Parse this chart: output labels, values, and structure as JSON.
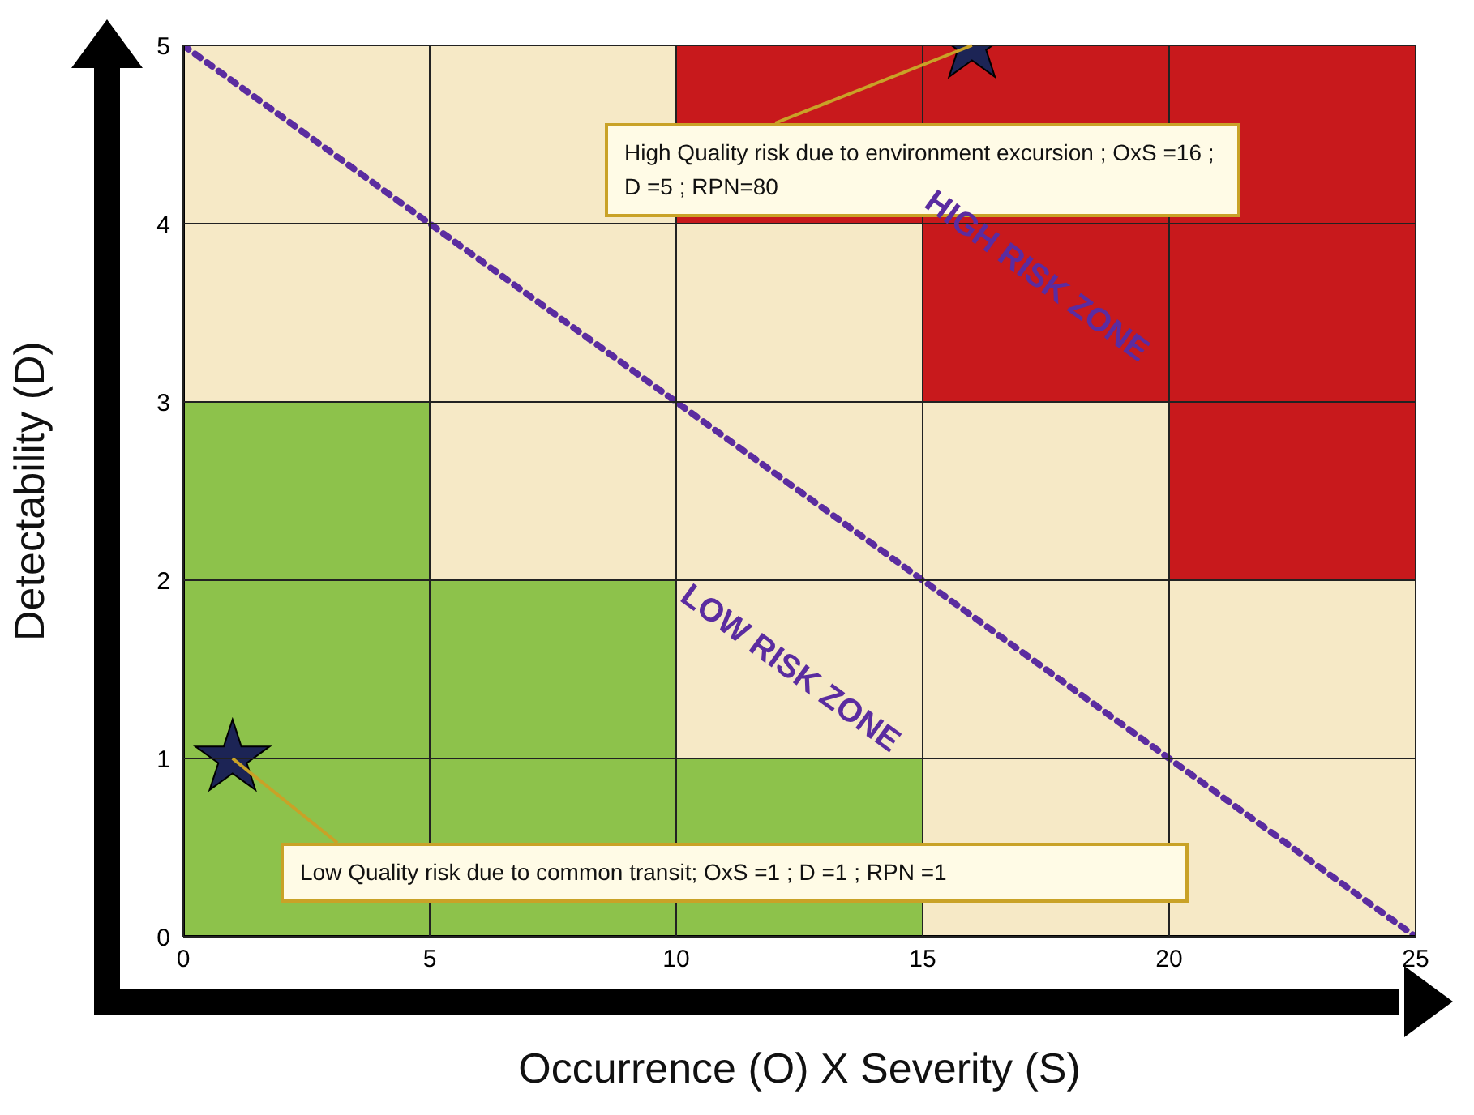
{
  "chart_data": {
    "type": "scatter",
    "xlabel": "Occurrence (O) X Severity (S)",
    "ylabel": "Detectability (D)",
    "xlim": [
      0,
      25
    ],
    "ylim": [
      0,
      5
    ],
    "xticks": [
      0,
      5,
      10,
      15,
      20,
      25
    ],
    "yticks": [
      0,
      1,
      2,
      3,
      4,
      5
    ],
    "grid": true,
    "stacked": true,
    "series": [
      {
        "type": "bar",
        "x": [
          2.5,
          7.5,
          12.5,
          17.5,
          22.5
        ],
        "values": [
          1,
          1,
          1,
          1,
          1
        ],
        "colors": [
          "#8dc24b",
          "#8dc24b",
          "#8dc24b",
          "#f6e9c6",
          "#f6e9c6"
        ]
      },
      {
        "type": "bar",
        "x": [
          2.5,
          7.5,
          12.5,
          17.5,
          22.5
        ],
        "values": [
          1,
          1,
          1,
          1,
          1
        ],
        "colors": [
          "#8dc24b",
          "#8dc24b",
          "#f6e9c6",
          "#f6e9c6",
          "#f6e9c6"
        ]
      },
      {
        "type": "bar",
        "x": [
          2.5,
          7.5,
          12.5,
          17.5,
          22.5
        ],
        "values": [
          1,
          1,
          1,
          1,
          1
        ],
        "colors": [
          "#8dc24b",
          "#f6e9c6",
          "#f6e9c6",
          "#f6e9c6",
          "#c8191c"
        ]
      },
      {
        "type": "bar",
        "x": [
          2.5,
          7.5,
          12.5,
          17.5,
          22.5
        ],
        "values": [
          1,
          1,
          1,
          1,
          1
        ],
        "colors": [
          "#f6e9c6",
          "#f6e9c6",
          "#f6e9c6",
          "#c8191c",
          "#c8191c"
        ]
      },
      {
        "type": "bar",
        "x": [
          2.5,
          7.5,
          12.5,
          17.5,
          22.5
        ],
        "values": [
          1,
          1,
          1,
          1,
          1
        ],
        "colors": [
          "#f6e9c6",
          "#f6e9c6",
          "#c8191c",
          "#c8191c",
          "#c8191c"
        ]
      },
      {
        "type": "line",
        "x": [
          0,
          25
        ],
        "values": [
          5,
          0
        ],
        "color": "#5b2ca0",
        "line_style": "dotted",
        "marker": "none"
      },
      {
        "x": [
          1,
          16
        ],
        "values": [
          1,
          5
        ],
        "color": "#1c2455",
        "marker": "star"
      }
    ],
    "annotations": [
      {
        "text": "High Quality risk due to environment excursion ; OxS =16 ; D =5 ; RPN=80",
        "x": 16,
        "y": 5
      },
      {
        "text": "Low Quality risk due to common transit; OxS =1 ; D =1 ; RPN =1",
        "x": 1,
        "y": 1
      },
      "HIGH RISK ZONE",
      "LOW RISK ZONE"
    ]
  }
}
